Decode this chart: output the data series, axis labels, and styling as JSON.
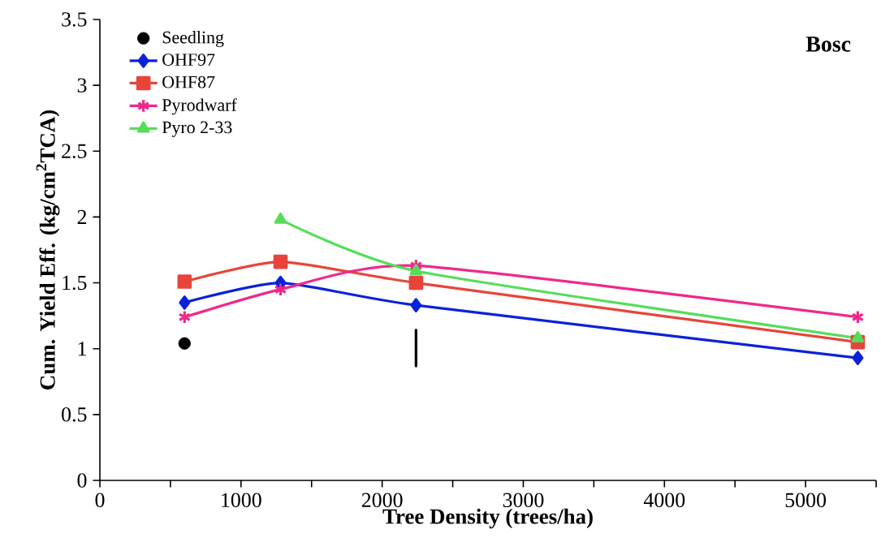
{
  "chart_data": {
    "type": "line",
    "xlabel": "Tree Density (trees/ha)",
    "ylabel": "Cum. Yield Eff. (kg/cm$^{2}$TCA)",
    "annotations": [
      "Bosc"
    ],
    "x": [
      600,
      1280,
      2240,
      5370
    ],
    "series": [
      {
        "name": "Seedling",
        "color": "#000000",
        "marker": "circle",
        "type": "scatter",
        "values": [
          1.04,
          null,
          null,
          null
        ]
      },
      {
        "name": "OHF97",
        "color": "#0a22d8",
        "marker": "diamond",
        "values": [
          1.35,
          1.5,
          1.33,
          0.93
        ]
      },
      {
        "name": "OHF87",
        "color": "#e8443a",
        "marker": "square",
        "values": [
          1.51,
          1.66,
          1.5,
          1.05
        ]
      },
      {
        "name": "Pyrodwarf",
        "color": "#f0288a",
        "marker": "cross",
        "values": [
          1.24,
          1.45,
          1.63,
          1.24
        ]
      },
      {
        "name": "Pyro 2-33",
        "color": "#55dd5a",
        "marker": "triangle",
        "values": [
          null,
          1.98,
          1.59,
          1.08
        ]
      },
      {
        "color": "#000000",
        "marker": "none",
        "x": [
          2240,
          2240
        ],
        "values": [
          0.86,
          1.15
        ]
      }
    ],
    "xlim": [
      0,
      5500
    ],
    "ylim": [
      0,
      3.5
    ],
    "xticks": [
      0,
      {
        "value": 500,
        "label": null
      },
      1000,
      {
        "value": 1500,
        "label": null
      },
      2000,
      {
        "value": 2500,
        "label": null
      },
      3000,
      {
        "value": 3500,
        "label": null
      },
      4000,
      {
        "value": 4500,
        "label": null
      },
      5000,
      {
        "value": 5500,
        "label": null
      }
    ],
    "yticks": [
      0,
      0.5,
      1,
      1.5,
      2,
      2.5,
      3,
      3.5
    ],
    "legend": "top left",
    "grid": false
  }
}
